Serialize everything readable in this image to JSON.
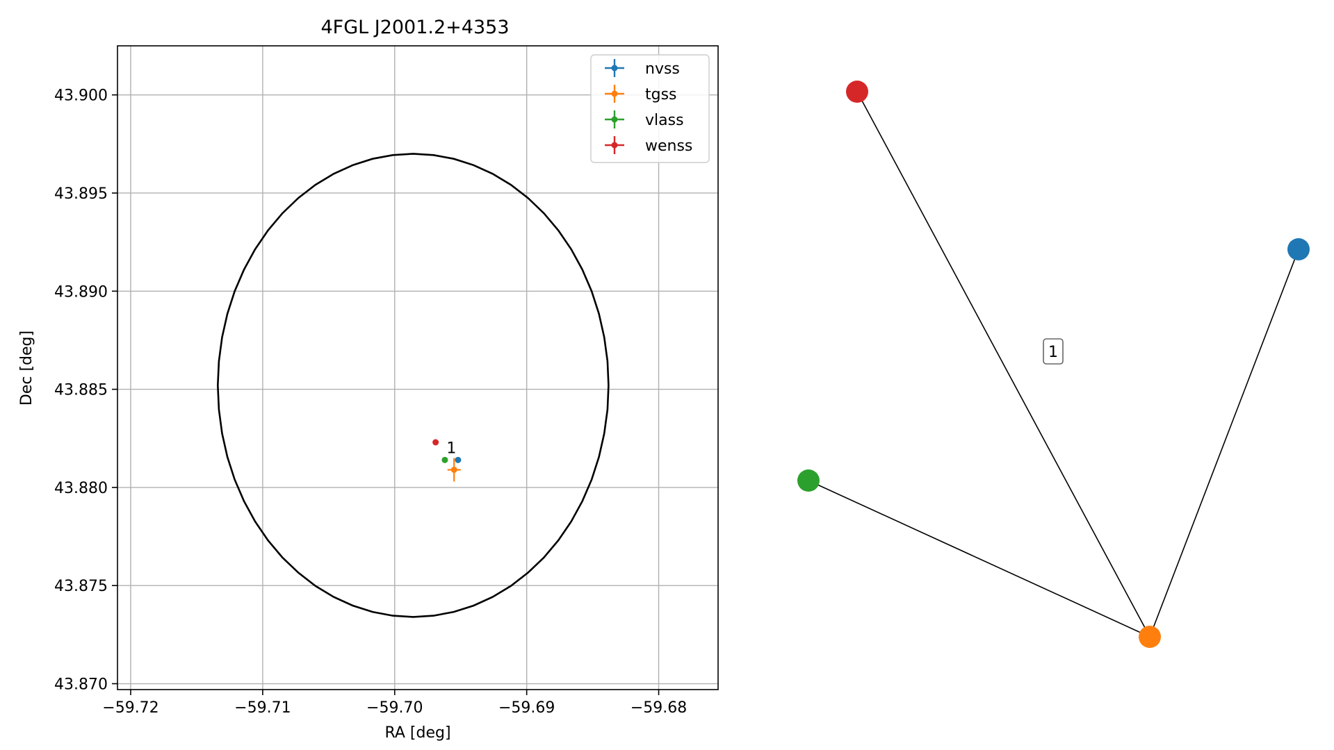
{
  "chart_data": [
    {
      "type": "scatter",
      "title": "4FGL J2001.2+4353",
      "xlabel": "RA [deg]",
      "ylabel": "Dec [deg]",
      "xlim": [
        -59.721,
        -59.6755
      ],
      "ylim": [
        43.8697,
        43.9025
      ],
      "xticks": [
        -59.72,
        -59.71,
        -59.7,
        -59.69,
        -59.68
      ],
      "xtick_labels": [
        "−59.72",
        "−59.71",
        "−59.70",
        "−59.69",
        "−59.68"
      ],
      "yticks": [
        43.87,
        43.875,
        43.88,
        43.885,
        43.89,
        43.895,
        43.9
      ],
      "ytick_labels": [
        "43.870",
        "43.875",
        "43.880",
        "43.885",
        "43.890",
        "43.895",
        "43.900"
      ],
      "grid": true,
      "legend_position": "top-right",
      "ellipse": {
        "center": [
          -59.6986,
          43.8852
        ],
        "radius_x": 0.0148,
        "radius_y": 0.0118,
        "color": "#000000"
      },
      "series": [
        {
          "name": "nvss",
          "color": "#1f77b4",
          "x": [
            -59.6952
          ],
          "y": [
            43.8814
          ],
          "xerr": [
            0.0001
          ],
          "yerr": [
            0.0001
          ]
        },
        {
          "name": "tgss",
          "color": "#ff7f0e",
          "x": [
            -59.6955
          ],
          "y": [
            43.8809
          ],
          "xerr": [
            0.0005
          ],
          "yerr": [
            0.0006
          ]
        },
        {
          "name": "vlass",
          "color": "#2ca02c",
          "x": [
            -59.6962
          ],
          "y": [
            43.8814
          ],
          "xerr": [
            0.0001
          ],
          "yerr": [
            0.0001
          ]
        },
        {
          "name": "wenss",
          "color": "#d62728",
          "x": [
            -59.6969
          ],
          "y": [
            43.8823
          ],
          "xerr": [
            0.0001
          ],
          "yerr": [
            0.0001
          ]
        }
      ],
      "annotations": [
        {
          "text": "1",
          "x": -59.6957,
          "y": 43.882
        }
      ]
    },
    {
      "type": "network",
      "nodes": [
        {
          "id": "wenss",
          "color": "#d62728"
        },
        {
          "id": "nvss",
          "color": "#1f77b4"
        },
        {
          "id": "vlass",
          "color": "#2ca02c"
        },
        {
          "id": "tgss",
          "color": "#ff7f0e"
        }
      ],
      "edges": [
        {
          "source": "wenss",
          "target": "tgss"
        },
        {
          "source": "nvss",
          "target": "tgss"
        },
        {
          "source": "vlass",
          "target": "tgss"
        }
      ],
      "edge_label": "1"
    }
  ]
}
